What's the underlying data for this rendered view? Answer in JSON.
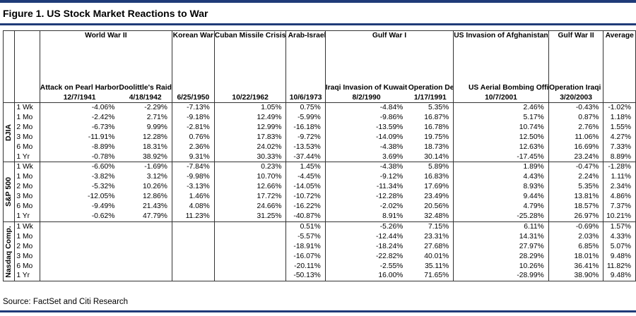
{
  "title": "Figure 1. US Stock Market Reactions to War",
  "source": "Source: FactSet and Citi Research",
  "colors": {
    "rule": "#1f3b78"
  },
  "events": [
    {
      "war": "World War II",
      "name": "Attack on Pearl Harbor",
      "date": "12/7/1941"
    },
    {
      "war": "",
      "name": "Doolittle's Raid",
      "date": "4/18/1942"
    },
    {
      "war": "Korean War",
      "name": "",
      "date": "6/25/1950"
    },
    {
      "war": "Cuban Missile Crisis",
      "name": "",
      "date": "10/22/1962"
    },
    {
      "war": "Arab-Israeli War",
      "name": "",
      "date": "10/6/1973"
    },
    {
      "war": "Gulf War I",
      "name": "Iraqi Invasion of Kuwait",
      "date": "8/2/1990"
    },
    {
      "war": "",
      "name": "Operation Desert Storm Begins",
      "date": "1/17/1991"
    },
    {
      "war": "US Invasion of Afghanistan",
      "name": "US Aerial Bombing Officially Begins",
      "date": "10/7/2001"
    },
    {
      "war": "Gulf War II",
      "name": "Operation Iraqi Freedom",
      "date": "3/20/2003"
    },
    {
      "war": "Average",
      "name": "",
      "date": ""
    }
  ],
  "groups": [
    {
      "label": "DJIA",
      "rows": [
        {
          "period": "1 Wk",
          "values": [
            "-4.06%",
            "-2.29%",
            "-7.13%",
            "1.05%",
            "0.75%",
            "-4.84%",
            "5.35%",
            "2.46%",
            "-0.43%",
            "-1.02%"
          ]
        },
        {
          "period": "1 Mo",
          "values": [
            "-2.42%",
            "2.71%",
            "-9.18%",
            "12.49%",
            "-5.99%",
            "-9.86%",
            "16.87%",
            "5.17%",
            "0.87%",
            "1.18%"
          ]
        },
        {
          "period": "2 Mo",
          "values": [
            "-6.73%",
            "9.99%",
            "-2.81%",
            "12.99%",
            "-16.18%",
            "-13.59%",
            "16.78%",
            "10.74%",
            "2.76%",
            "1.55%"
          ]
        },
        {
          "period": "3 Mo",
          "values": [
            "-11.91%",
            "12.28%",
            "0.76%",
            "17.83%",
            "-9.72%",
            "-14.09%",
            "19.75%",
            "12.50%",
            "11.06%",
            "4.27%"
          ]
        },
        {
          "period": "6 Mo",
          "values": [
            "-8.89%",
            "18.31%",
            "2.36%",
            "24.02%",
            "-13.53%",
            "-4.38%",
            "18.73%",
            "12.63%",
            "16.69%",
            "7.33%"
          ]
        },
        {
          "period": "1 Yr",
          "values": [
            "-0.78%",
            "38.92%",
            "9.31%",
            "30.33%",
            "-37.44%",
            "3.69%",
            "30.14%",
            "-17.45%",
            "23.24%",
            "8.89%"
          ]
        }
      ]
    },
    {
      "label": "S&P 500",
      "rows": [
        {
          "period": "1 Wk",
          "values": [
            "-6.60%",
            "-1.69%",
            "-7.84%",
            "0.23%",
            "1.45%",
            "-4.38%",
            "5.89%",
            "1.89%",
            "-0.47%",
            "-1.28%"
          ]
        },
        {
          "period": "1 Mo",
          "values": [
            "-3.82%",
            "3.12%",
            "-9.98%",
            "10.70%",
            "-4.45%",
            "-9.12%",
            "16.83%",
            "4.43%",
            "2.24%",
            "1.11%"
          ]
        },
        {
          "period": "2 Mo",
          "values": [
            "-5.32%",
            "10.26%",
            "-3.13%",
            "12.66%",
            "-14.05%",
            "-11.34%",
            "17.69%",
            "8.93%",
            "5.35%",
            "2.34%"
          ]
        },
        {
          "period": "3 Mo",
          "values": [
            "-12.05%",
            "12.86%",
            "1.46%",
            "17.72%",
            "-10.72%",
            "-12.28%",
            "23.49%",
            "9.44%",
            "13.81%",
            "4.86%"
          ]
        },
        {
          "period": "6 Mo",
          "values": [
            "-9.49%",
            "21.43%",
            "4.08%",
            "24.66%",
            "-16.22%",
            "-2.02%",
            "20.56%",
            "4.79%",
            "18.57%",
            "7.37%"
          ]
        },
        {
          "period": "1 Yr",
          "values": [
            "-0.62%",
            "47.79%",
            "11.23%",
            "31.25%",
            "-40.87%",
            "8.91%",
            "32.48%",
            "-25.28%",
            "26.97%",
            "10.21%"
          ]
        }
      ]
    },
    {
      "label": "Nasdaq Comp.",
      "rows": [
        {
          "period": "1 Wk",
          "values": [
            "",
            "",
            "",
            "",
            "0.51%",
            "-5.26%",
            "7.15%",
            "6.11%",
            "-0.69%",
            "1.57%"
          ]
        },
        {
          "period": "1 Mo",
          "values": [
            "",
            "",
            "",
            "",
            "-5.57%",
            "-12.44%",
            "23.31%",
            "14.31%",
            "2.03%",
            "4.33%"
          ]
        },
        {
          "period": "2 Mo",
          "values": [
            "",
            "",
            "",
            "",
            "-18.91%",
            "-18.24%",
            "27.68%",
            "27.97%",
            "6.85%",
            "5.07%"
          ]
        },
        {
          "period": "3 Mo",
          "values": [
            "",
            "",
            "",
            "",
            "-16.07%",
            "-22.82%",
            "40.01%",
            "28.29%",
            "18.01%",
            "9.48%"
          ]
        },
        {
          "period": "6 Mo",
          "values": [
            "",
            "",
            "",
            "",
            "-20.11%",
            "-2.55%",
            "35.11%",
            "10.26%",
            "36.41%",
            "11.82%"
          ]
        },
        {
          "period": "1 Yr",
          "values": [
            "",
            "",
            "",
            "",
            "-50.13%",
            "16.00%",
            "71.65%",
            "-28.99%",
            "38.90%",
            "9.48%"
          ]
        }
      ]
    }
  ]
}
